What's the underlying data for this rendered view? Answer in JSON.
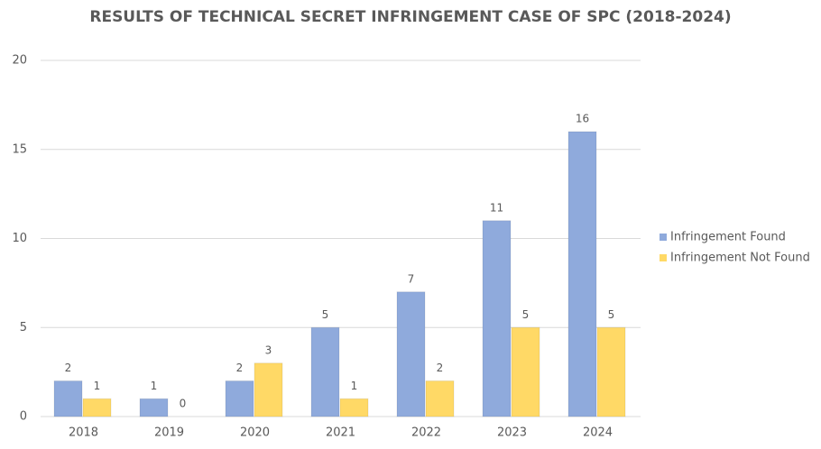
{
  "chart_data": {
    "type": "bar",
    "title": "RESULTS OF TECHNICAL SECRET INFRINGEMENT CASE OF SPC (2018-2024)",
    "categories": [
      "2018",
      "2019",
      "2020",
      "2021",
      "2022",
      "2023",
      "2024"
    ],
    "series": [
      {
        "name": "Infringement Found",
        "color": "#8faadc",
        "values": [
          2,
          1,
          2,
          5,
          7,
          11,
          16
        ]
      },
      {
        "name": "Infringement Not Found",
        "color": "#ffd966",
        "values": [
          1,
          0,
          3,
          1,
          2,
          5,
          5
        ]
      }
    ],
    "ylim": [
      0,
      20
    ],
    "yticks": [
      0,
      5,
      10,
      15,
      20
    ],
    "grid": true,
    "legend": "right"
  }
}
